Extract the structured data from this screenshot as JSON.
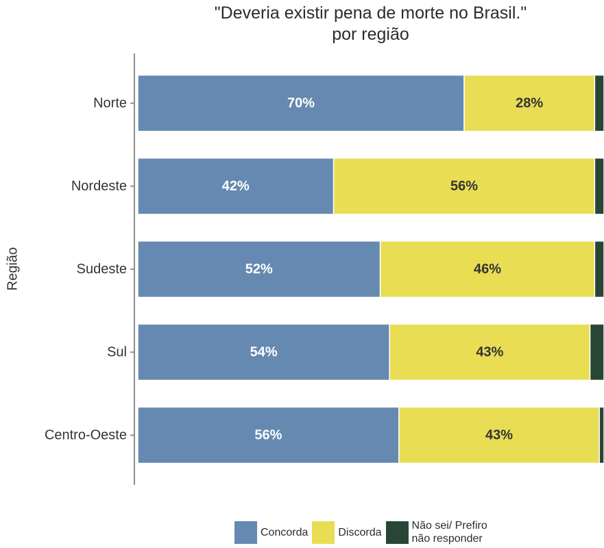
{
  "chart_data": {
    "type": "bar",
    "orientation": "horizontal",
    "stacked": true,
    "title": "\"Deveria existir pena de morte no Brasil.\"",
    "subtitle": "por região",
    "ylabel": "Região",
    "xlabel": "",
    "categories": [
      "Norte",
      "Nordeste",
      "Sudeste",
      "Sul",
      "Centro-Oeste"
    ],
    "series": [
      {
        "name": "Concorda",
        "color": "#6589b0",
        "label_color": "#ffffff",
        "values": [
          70,
          42,
          52,
          54,
          56
        ],
        "labels": [
          "70%",
          "42%",
          "52%",
          "54%",
          "56%"
        ]
      },
      {
        "name": "Discorda",
        "color": "#e8dd53",
        "label_color": "#333333",
        "values": [
          28,
          56,
          46,
          43,
          43
        ],
        "labels": [
          "28%",
          "56%",
          "46%",
          "43%",
          "43%"
        ]
      },
      {
        "name": "Não sei/ Prefiro\nnão responder",
        "color": "#294536",
        "label_color": "#ffffff",
        "values": [
          2,
          2,
          2,
          3,
          1
        ],
        "labels": [
          "",
          "",
          "",
          "",
          ""
        ]
      }
    ],
    "xlim": [
      0,
      100
    ],
    "grid": false,
    "legend_position": "bottom"
  }
}
